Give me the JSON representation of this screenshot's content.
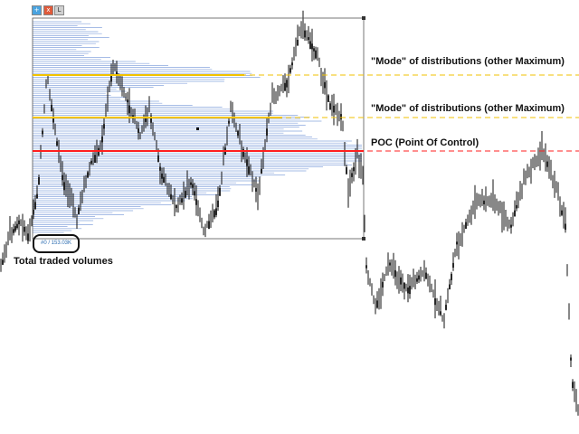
{
  "toolbar": {
    "add_icon": "plus-icon",
    "close_icon": "close-icon",
    "lock_icon": "lock-icon",
    "add_glyph": "+",
    "close_glyph": "x",
    "lock_glyph": "L"
  },
  "annotations": {
    "mode_1": "\"Mode\" of distributions (other Maximum)",
    "mode_2": "\"Mode\" of distributions (other Maximum)",
    "poc": "POC (Point Of Control)",
    "total_volumes": "Total traded volumes"
  },
  "volume_badge": {
    "text": "#0 / 153.03K"
  },
  "colors": {
    "candles": "#111111",
    "histogram": "#6b8fd6",
    "mode_line": "#f2c200",
    "poc_line": "#ff1f1f",
    "box": "#555555"
  }
}
